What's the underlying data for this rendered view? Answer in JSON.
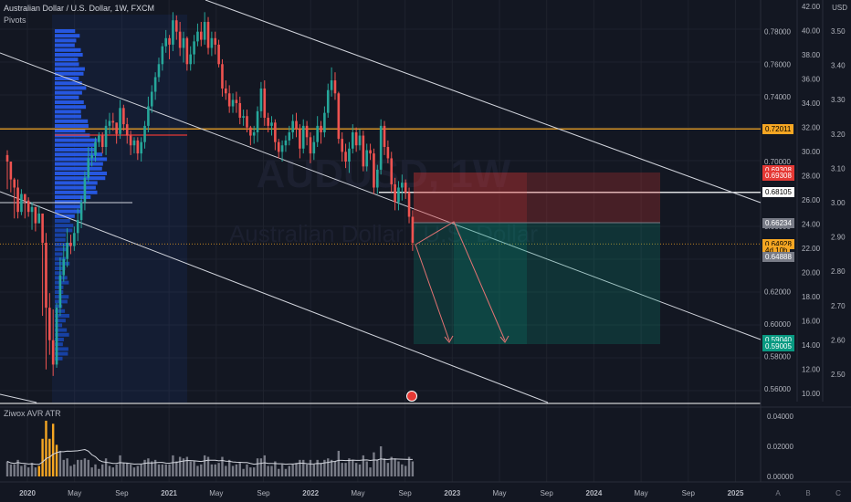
{
  "header": {
    "symbol_line": "Australian Dollar / U.S. Dollar, 1W, FXCM",
    "pivots_label": "Pivots",
    "currency": "USD",
    "indicator_label": "Ziwox AVR ATR"
  },
  "watermark": {
    "ticker": "AUDUSD, 1W",
    "name": "Australian Dollar / U.S. Dollar"
  },
  "price_labels": [
    {
      "value": "0.72011",
      "price": 0.72011,
      "bg": "#f5a623",
      "fg": "#000000"
    },
    {
      "value": "0.69308",
      "price": 0.6945,
      "bg": "#e53935",
      "fg": "#ffffff"
    },
    {
      "value": "0.69308",
      "price": 0.6915,
      "bg": "#e53935",
      "fg": "#ffffff"
    },
    {
      "value": "0.68105",
      "price": 0.68105,
      "bg": "#ffffff",
      "fg": "#000000"
    },
    {
      "value": "0.66234",
      "price": 0.66234,
      "bg": "#787b86",
      "fg": "#ffffff"
    },
    {
      "value": "0.64928",
      "price": 0.64928,
      "bg": "#f5a623",
      "fg": "#000000"
    },
    {
      "value": "4d 10h",
      "price": 0.6454,
      "bg": "#f5a623",
      "fg": "#000000"
    },
    {
      "value": "0.64888",
      "price": 0.641,
      "bg": "#787b86",
      "fg": "#ffffff"
    },
    {
      "value": "0.59040",
      "price": 0.5904,
      "bg": "#089981",
      "fg": "#ffffff"
    },
    {
      "value": "0.59005",
      "price": 0.5862,
      "bg": "#089981",
      "fg": "#ffffff"
    }
  ],
  "indicator_labels": [
    {
      "value": "0.04000",
      "v": 0.04
    },
    {
      "value": "0.02000",
      "v": 0.02
    },
    {
      "value": "0.00000",
      "v": 0.0
    }
  ],
  "bottom_right_buttons": [
    "A",
    "B",
    "C"
  ],
  "chart_data": {
    "type": "candlestick",
    "x_tick_labels": [
      "2020",
      "May",
      "Sep",
      "2021",
      "May",
      "Sep",
      "2022",
      "May",
      "Sep",
      "2023",
      "May",
      "Sep",
      "2024",
      "May",
      "Sep",
      "2025"
    ],
    "price_axis_ticks": [
      "0.78000",
      "0.76000",
      "0.74000",
      "0.72000",
      "0.70000",
      "0.68000",
      "0.66000",
      "0.64000",
      "0.62000",
      "0.60000",
      "0.58000",
      "0.56000"
    ],
    "left_scale_ticks": [
      "42.00",
      "40.00",
      "38.00",
      "36.00",
      "34.00",
      "32.00",
      "30.00",
      "28.00",
      "26.00",
      "24.00",
      "22.00",
      "20.00",
      "18.00",
      "16.00",
      "14.00",
      "12.00",
      "10.00"
    ],
    "right_scale_ticks": [
      "3.50",
      "3.40",
      "3.30",
      "3.20",
      "3.10",
      "3.00",
      "2.90",
      "2.80",
      "2.70",
      "2.60",
      "2.50"
    ],
    "price_range": [
      0.555,
      0.795
    ],
    "key_levels": {
      "pivot": 0.72011,
      "stop": 0.6945,
      "entry": 0.66234,
      "current": 0.64928,
      "target": 0.5904
    },
    "closes": [
      0.7,
      0.689,
      0.684,
      0.669,
      0.68,
      0.676,
      0.669,
      0.672,
      0.662,
      0.668,
      0.65,
      0.61,
      0.59,
      0.575,
      0.61,
      0.63,
      0.64,
      0.65,
      0.648,
      0.656,
      0.664,
      0.675,
      0.69,
      0.702,
      0.704,
      0.712,
      0.716,
      0.709,
      0.722,
      0.725,
      0.724,
      0.717,
      0.733,
      0.723,
      0.716,
      0.71,
      0.713,
      0.705,
      0.712,
      0.722,
      0.734,
      0.743,
      0.752,
      0.76,
      0.771,
      0.776,
      0.772,
      0.787,
      0.78,
      0.77,
      0.776,
      0.76,
      0.766,
      0.774,
      0.78,
      0.775,
      0.786,
      0.77,
      0.776,
      0.772,
      0.76,
      0.745,
      0.742,
      0.734,
      0.738,
      0.736,
      0.727,
      0.728,
      0.721,
      0.716,
      0.718,
      0.731,
      0.745,
      0.727,
      0.722,
      0.724,
      0.712,
      0.706,
      0.71,
      0.713,
      0.718,
      0.725,
      0.72,
      0.708,
      0.722,
      0.715,
      0.705,
      0.712,
      0.722,
      0.718,
      0.73,
      0.744,
      0.75,
      0.742,
      0.714,
      0.706,
      0.7,
      0.708,
      0.718,
      0.71,
      0.716,
      0.697,
      0.707,
      0.705,
      0.684,
      0.695,
      0.722,
      0.709,
      0.702,
      0.686,
      0.675,
      0.684,
      0.687,
      0.681,
      0.666,
      0.65
    ],
    "highs": [
      0.707,
      0.692,
      0.69,
      0.689,
      0.683,
      0.68,
      0.678,
      0.675,
      0.669,
      0.673,
      0.661,
      0.656,
      0.619,
      0.609,
      0.613,
      0.641,
      0.649,
      0.659,
      0.655,
      0.66,
      0.671,
      0.679,
      0.694,
      0.709,
      0.709,
      0.715,
      0.718,
      0.718,
      0.726,
      0.73,
      0.73,
      0.724,
      0.738,
      0.735,
      0.727,
      0.719,
      0.715,
      0.715,
      0.715,
      0.725,
      0.74,
      0.747,
      0.755,
      0.764,
      0.773,
      0.781,
      0.778,
      0.792,
      0.79,
      0.786,
      0.78,
      0.777,
      0.771,
      0.778,
      0.785,
      0.786,
      0.792,
      0.789,
      0.78,
      0.78,
      0.775,
      0.763,
      0.75,
      0.747,
      0.742,
      0.743,
      0.74,
      0.732,
      0.732,
      0.722,
      0.722,
      0.734,
      0.749,
      0.75,
      0.73,
      0.728,
      0.726,
      0.714,
      0.713,
      0.716,
      0.722,
      0.729,
      0.73,
      0.723,
      0.726,
      0.725,
      0.718,
      0.716,
      0.728,
      0.725,
      0.734,
      0.748,
      0.758,
      0.755,
      0.743,
      0.718,
      0.711,
      0.712,
      0.723,
      0.721,
      0.72,
      0.719,
      0.711,
      0.711,
      0.708,
      0.698,
      0.726,
      0.725,
      0.713,
      0.706,
      0.69,
      0.688,
      0.692,
      0.689,
      0.684,
      0.67
    ],
    "lows": [
      0.683,
      0.681,
      0.665,
      0.665,
      0.667,
      0.665,
      0.666,
      0.658,
      0.657,
      0.662,
      0.605,
      0.572,
      0.581,
      0.568,
      0.573,
      0.605,
      0.626,
      0.635,
      0.643,
      0.645,
      0.651,
      0.659,
      0.67,
      0.687,
      0.697,
      0.7,
      0.709,
      0.705,
      0.704,
      0.717,
      0.719,
      0.711,
      0.714,
      0.719,
      0.711,
      0.704,
      0.705,
      0.701,
      0.7,
      0.708,
      0.718,
      0.73,
      0.738,
      0.749,
      0.756,
      0.767,
      0.763,
      0.768,
      0.775,
      0.765,
      0.761,
      0.756,
      0.756,
      0.76,
      0.771,
      0.771,
      0.772,
      0.766,
      0.765,
      0.766,
      0.758,
      0.74,
      0.738,
      0.73,
      0.73,
      0.73,
      0.723,
      0.722,
      0.718,
      0.71,
      0.711,
      0.712,
      0.727,
      0.722,
      0.718,
      0.716,
      0.707,
      0.702,
      0.7,
      0.706,
      0.71,
      0.714,
      0.715,
      0.702,
      0.705,
      0.71,
      0.699,
      0.701,
      0.709,
      0.711,
      0.715,
      0.727,
      0.74,
      0.738,
      0.711,
      0.7,
      0.696,
      0.693,
      0.705,
      0.706,
      0.707,
      0.694,
      0.694,
      0.701,
      0.68,
      0.68,
      0.692,
      0.704,
      0.699,
      0.681,
      0.67,
      0.67,
      0.676,
      0.677,
      0.662,
      0.645
    ],
    "atr": [
      0.01,
      0.008,
      0.008,
      0.011,
      0.007,
      0.008,
      0.006,
      0.009,
      0.006,
      0.007,
      0.025,
      0.037,
      0.025,
      0.035,
      0.021,
      0.017,
      0.011,
      0.012,
      0.007,
      0.008,
      0.011,
      0.011,
      0.012,
      0.011,
      0.006,
      0.008,
      0.005,
      0.008,
      0.012,
      0.007,
      0.006,
      0.008,
      0.014,
      0.009,
      0.009,
      0.008,
      0.006,
      0.007,
      0.008,
      0.011,
      0.012,
      0.01,
      0.011,
      0.008,
      0.008,
      0.008,
      0.008,
      0.014,
      0.01,
      0.013,
      0.012,
      0.013,
      0.01,
      0.01,
      0.007,
      0.008,
      0.014,
      0.013,
      0.008,
      0.008,
      0.009,
      0.013,
      0.007,
      0.011,
      0.007,
      0.008,
      0.009,
      0.005,
      0.008,
      0.006,
      0.006,
      0.012,
      0.012,
      0.014,
      0.007,
      0.007,
      0.01,
      0.005,
      0.008,
      0.005,
      0.007,
      0.008,
      0.009,
      0.011,
      0.011,
      0.008,
      0.011,
      0.008,
      0.011,
      0.009,
      0.011,
      0.012,
      0.011,
      0.01,
      0.017,
      0.009,
      0.009,
      0.012,
      0.011,
      0.009,
      0.008,
      0.014,
      0.01,
      0.006,
      0.016,
      0.011,
      0.02,
      0.012,
      0.009,
      0.013,
      0.012,
      0.01,
      0.008,
      0.007,
      0.013,
      0.01
    ]
  }
}
